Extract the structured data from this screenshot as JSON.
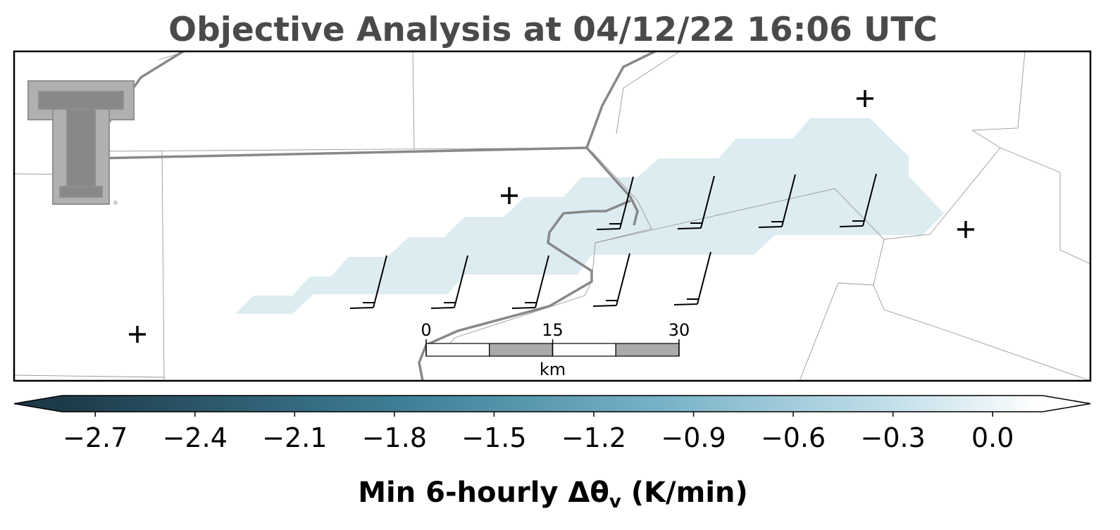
{
  "header": {
    "title": "Objective Analysis at 04/12/22 16:06 UTC"
  },
  "scale_bar": {
    "ticks": [
      0,
      15,
      30
    ],
    "unit": "km"
  },
  "colorbar": {
    "clim": [
      -2.8,
      0.15
    ],
    "ticks": [
      {
        "value": -2.7,
        "label": "−2.7"
      },
      {
        "value": -2.4,
        "label": "−2.4"
      },
      {
        "value": -2.1,
        "label": "−2.1"
      },
      {
        "value": -1.8,
        "label": "−1.8"
      },
      {
        "value": -1.5,
        "label": "−1.5"
      },
      {
        "value": -1.2,
        "label": "−1.2"
      },
      {
        "value": -0.9,
        "label": "−0.9"
      },
      {
        "value": -0.6,
        "label": "−0.6"
      },
      {
        "value": -0.3,
        "label": "−0.3"
      },
      {
        "value": 0.0,
        "label": "0.0"
      }
    ],
    "label": {
      "main": "Min 6-hourly Δθ",
      "subscript": "v",
      "tail": " (K/min)"
    }
  }
}
